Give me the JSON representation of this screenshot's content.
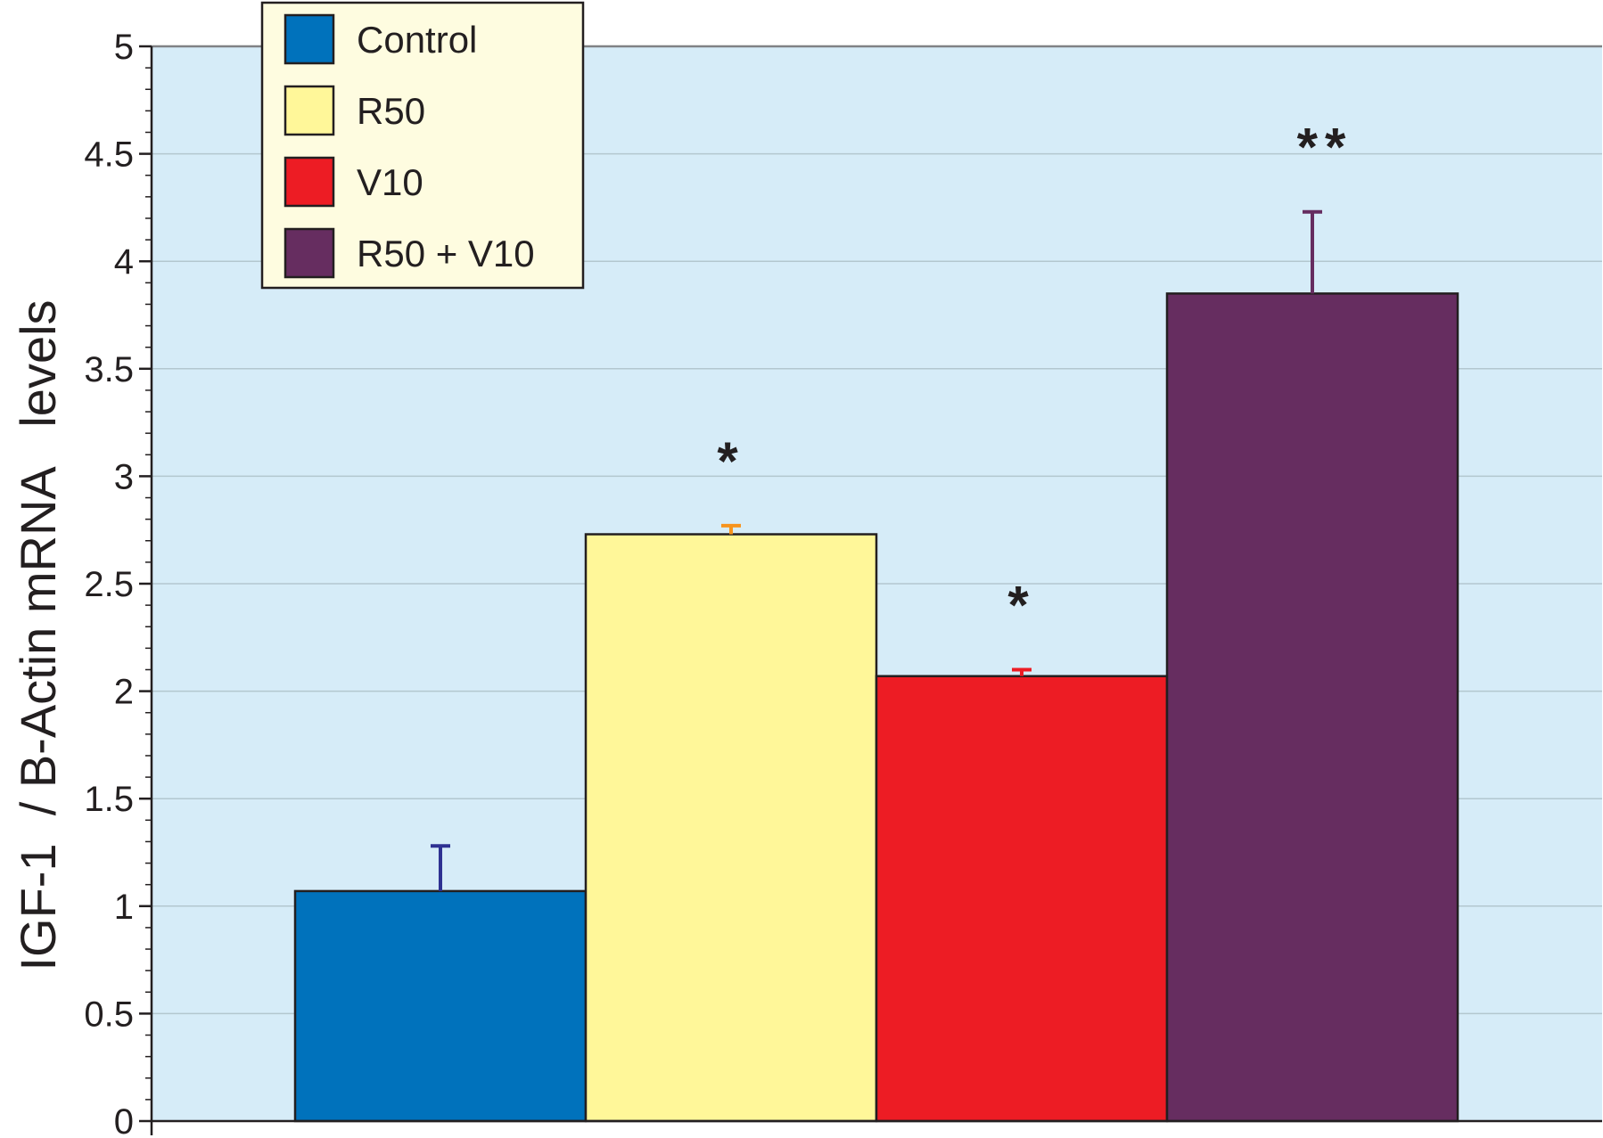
{
  "chart_data": {
    "type": "bar",
    "title": "",
    "xlabel": "",
    "ylabel": "IGF-1  / B-Actin mRNA   levels",
    "ylim": [
      0,
      5
    ],
    "yticks": [
      "0",
      "0.5",
      "1",
      "1.5",
      "2",
      "2.5",
      "3",
      "3.5",
      "4",
      "4.5",
      "5"
    ],
    "grid": true,
    "legend_position": "top-left",
    "background_color": "#d6ecf8",
    "legend_background": "#fefce0",
    "series": [
      {
        "name": "Control",
        "value": 1.07,
        "error": 0.21,
        "color": "#0072bc",
        "error_color": "#2e3192",
        "significance": ""
      },
      {
        "name": "R50",
        "value": 2.73,
        "error": 0.04,
        "color": "#fff799",
        "error_color": "#f7941d",
        "significance": "*"
      },
      {
        "name": "V10",
        "value": 2.07,
        "error": 0.03,
        "color": "#ed1c24",
        "error_color": "#ed1c24",
        "significance": "*"
      },
      {
        "name": "R50 + V10",
        "value": 3.85,
        "error": 0.38,
        "color": "#662d60",
        "error_color": "#662d60",
        "significance": "**"
      }
    ]
  }
}
